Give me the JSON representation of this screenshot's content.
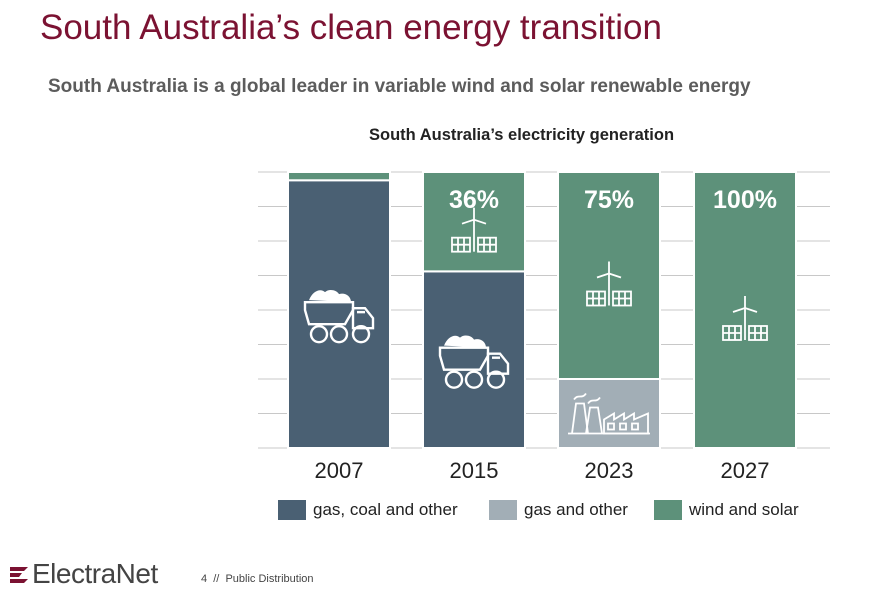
{
  "page": {
    "title": "South Australia’s clean energy transition",
    "subtitle": "South Australia is a global leader in variable wind and solar renewable energy"
  },
  "footer": {
    "logo_text": "ElectraNet",
    "page_info": "4  //  Public Distribution"
  },
  "colors": {
    "gas_coal_other": "#4a6073",
    "gas_other": "#a2aeb6",
    "wind_solar": "#5d917a",
    "title": "#7b1232",
    "grid": "#c8c8c8"
  },
  "chart_data": {
    "type": "bar",
    "stacked": true,
    "title": "South Australia’s electricity generation",
    "categories": [
      "2007",
      "2015",
      "2023",
      "2027"
    ],
    "series": [
      {
        "name": "gas, coal and other",
        "values": [
          97,
          64,
          0,
          0
        ],
        "color": "#4a6073"
      },
      {
        "name": "gas and other",
        "values": [
          0,
          0,
          25,
          0
        ],
        "color": "#a2aeb6"
      },
      {
        "name": "wind and solar",
        "values": [
          3,
          36,
          75,
          100
        ],
        "color": "#5d917a"
      }
    ],
    "data_labels": [
      "",
      "36%",
      "75%",
      "100%"
    ],
    "icons": [
      {
        "category": "2007",
        "segment": "gas, coal and other",
        "icon": "mining-truck-icon"
      },
      {
        "category": "2015",
        "segment": "gas, coal and other",
        "icon": "mining-truck-icon"
      },
      {
        "category": "2015",
        "segment": "wind and solar",
        "icon": "wind-solar-icon"
      },
      {
        "category": "2023",
        "segment": "gas and other",
        "icon": "factory-icon"
      },
      {
        "category": "2023",
        "segment": "wind and solar",
        "icon": "wind-solar-icon"
      },
      {
        "category": "2027",
        "segment": "wind and solar",
        "icon": "wind-solar-icon"
      }
    ],
    "ylim": [
      0,
      100
    ],
    "grid": true,
    "legend_position": "bottom",
    "xlabel": "",
    "ylabel": ""
  }
}
